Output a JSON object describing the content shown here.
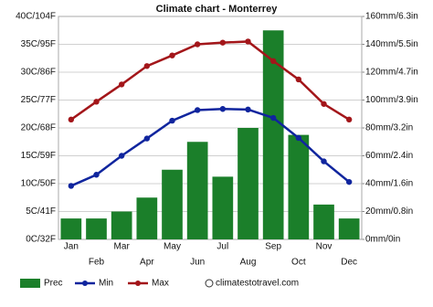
{
  "chart_data": {
    "type": "bar",
    "title": "Climate chart - Monterrey",
    "watermark": "climatestotravel.com",
    "categories": [
      "Jan",
      "Feb",
      "Mar",
      "Apr",
      "May",
      "Jun",
      "Jul",
      "Aug",
      "Sep",
      "Oct",
      "Nov",
      "Dec"
    ],
    "series": [
      {
        "name": "Prec",
        "type": "bar",
        "axis": "y2",
        "color": "#1b7f2a",
        "values": [
          15,
          15,
          20,
          30,
          50,
          70,
          45,
          80,
          150,
          75,
          25,
          15
        ]
      },
      {
        "name": "Min",
        "type": "line",
        "color": "#10259e",
        "values": [
          9.6,
          11.6,
          15,
          18.1,
          21.3,
          23.2,
          23.4,
          23.3,
          21.8,
          18.2,
          14,
          10.3
        ]
      },
      {
        "name": "Max",
        "type": "line",
        "color": "#a3161a",
        "values": [
          21.5,
          24.7,
          27.8,
          31.1,
          33,
          35,
          35.3,
          35.5,
          32,
          28.7,
          24.3,
          21.5
        ]
      }
    ],
    "ylim": [
      0,
      40
    ],
    "yticks": [
      {
        "value": 0,
        "label": "0C/32F"
      },
      {
        "value": 5,
        "label": "5C/41F"
      },
      {
        "value": 10,
        "label": "10C/50F"
      },
      {
        "value": 15,
        "label": "15C/59F"
      },
      {
        "value": 20,
        "label": "20C/68F"
      },
      {
        "value": 25,
        "label": "25C/77F"
      },
      {
        "value": 30,
        "label": "30C/86F"
      },
      {
        "value": 35,
        "label": "35C/95F"
      },
      {
        "value": 40,
        "label": "40C/104F"
      }
    ],
    "y2lim": [
      0,
      160
    ],
    "y2ticks": [
      {
        "value": 0,
        "label": "0mm/0in"
      },
      {
        "value": 20,
        "label": "20mm/0.8in"
      },
      {
        "value": 40,
        "label": "40mm/1.6in"
      },
      {
        "value": 60,
        "label": "60mm/2.4in"
      },
      {
        "value": 80,
        "label": "80mm/3.2in"
      },
      {
        "value": 100,
        "label": "100mm/3.9in"
      },
      {
        "value": 120,
        "label": "120mm/4.7in"
      },
      {
        "value": 140,
        "label": "140mm/5.5in"
      },
      {
        "value": 160,
        "label": "160mm/6.3in"
      }
    ],
    "grid": true
  }
}
